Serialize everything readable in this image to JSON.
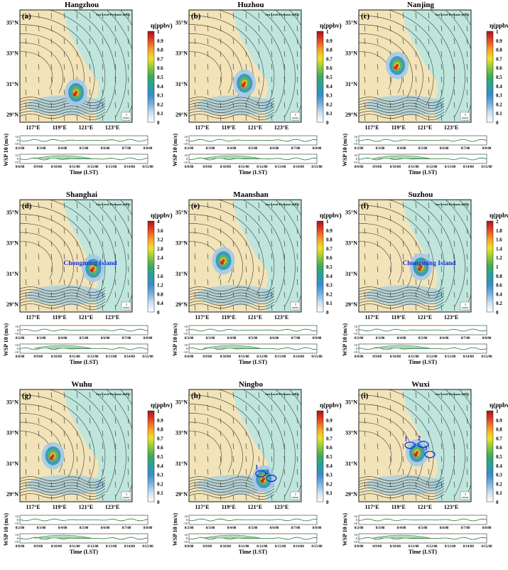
{
  "colors": {
    "land": "#f2e3b8",
    "sea": "#bfe6dd",
    "contour": "#333333",
    "wind_line": "#1f7a2e",
    "wind_fill": "#b9dfc0",
    "marker": "#e8192c",
    "annotation": "#1a2bd6"
  },
  "common": {
    "legend_title": "η(ppbv)",
    "slp_label": "Sea Level Pressure (hPa)",
    "lat_ticks": [
      "35°N",
      "33°N",
      "31°N",
      "29°N"
    ],
    "lon_ticks": [
      "117°E",
      "119°E",
      "121°E",
      "123°E"
    ],
    "ts_ylabel": "WSP 10 (m/s)",
    "ts_xlabel": "Time (LST)",
    "ts_yticks": [
      "10",
      "0",
      "-10"
    ],
    "ts1_dates": [
      "8/2/08",
      "8/3/08",
      "8/4/08",
      "8/5/08",
      "8/6/08",
      "8/7/08",
      "8/8/08"
    ],
    "ts2_dates": [
      "8/8/08",
      "8/9/08",
      "8/10/08",
      "8/11/08",
      "8/12/08",
      "8/13/08",
      "8/14/08",
      "8/15/08"
    ],
    "scale_label": "5"
  },
  "chart_data": [
    {
      "type": "heatmap",
      "panel": "(a)",
      "title": "Hangzhou",
      "colorbar_ticks": [
        "1",
        "0.9",
        "0.8",
        "0.7",
        "0.6",
        "0.5",
        "0.4",
        "0.3",
        "0.2",
        "0.1",
        "0"
      ],
      "colorbar_range": [
        0,
        1
      ],
      "source_location": {
        "lon": 120.15,
        "lat": 30.3
      },
      "annotations": []
    },
    {
      "type": "heatmap",
      "panel": "(b)",
      "title": "Huzhou",
      "colorbar_ticks": [
        "1",
        "0.9",
        "0.8",
        "0.7",
        "0.6",
        "0.5",
        "0.4",
        "0.3",
        "0.2",
        "0.1",
        "0"
      ],
      "colorbar_range": [
        0,
        1
      ],
      "source_location": {
        "lon": 120.1,
        "lat": 30.9
      },
      "annotations": []
    },
    {
      "type": "heatmap",
      "panel": "(c)",
      "title": "Nanjing",
      "colorbar_ticks": [
        "1",
        "0.9",
        "0.8",
        "0.7",
        "0.6",
        "0.5",
        "0.4",
        "0.3",
        "0.2",
        "0.1",
        "0"
      ],
      "colorbar_range": [
        0,
        1
      ],
      "source_location": {
        "lon": 118.8,
        "lat": 32.05
      },
      "annotations": []
    },
    {
      "type": "heatmap",
      "panel": "(d)",
      "title": "Shanghai",
      "colorbar_ticks": [
        "4",
        "3.6",
        "3.2",
        "2.8",
        "2.4",
        "2",
        "1.6",
        "1.2",
        "0.8",
        "0.4",
        "0"
      ],
      "colorbar_range": [
        0,
        4
      ],
      "source_location": {
        "lon": 121.45,
        "lat": 31.2
      },
      "annotations": [
        {
          "text": "Chongming Island",
          "lon": 119.3,
          "lat": 31.55
        }
      ]
    },
    {
      "type": "heatmap",
      "panel": "(e)",
      "title": "Maanshan",
      "colorbar_ticks": [
        "1",
        "0.9",
        "0.8",
        "0.7",
        "0.6",
        "0.5",
        "0.4",
        "0.3",
        "0.2",
        "0.1",
        "0"
      ],
      "colorbar_range": [
        0,
        1
      ],
      "source_location": {
        "lon": 118.5,
        "lat": 31.7
      },
      "annotations": []
    },
    {
      "type": "heatmap",
      "panel": "(f)",
      "title": "Suzhou",
      "colorbar_ticks": [
        "2",
        "1.8",
        "1.6",
        "1.4",
        "1.2",
        "1",
        "0.8",
        "0.6",
        "0.4",
        "0.2",
        "0"
      ],
      "colorbar_range": [
        0,
        2
      ],
      "source_location": {
        "lon": 120.6,
        "lat": 31.3
      },
      "annotations": [
        {
          "text": "Chongming Island",
          "lon": 119.3,
          "lat": 31.55
        }
      ]
    },
    {
      "type": "heatmap",
      "panel": "(g)",
      "title": "Wuhu",
      "colorbar_ticks": [
        "1",
        "0.9",
        "0.8",
        "0.7",
        "0.6",
        "0.5",
        "0.4",
        "0.3",
        "0.2",
        "0.1",
        "0"
      ],
      "colorbar_range": [
        0,
        1
      ],
      "source_location": {
        "lon": 118.4,
        "lat": 31.35
      },
      "annotations": []
    },
    {
      "type": "heatmap",
      "panel": "(h)",
      "title": "Ningbo",
      "colorbar_ticks": [
        "1",
        "0.9",
        "0.8",
        "0.7",
        "0.6",
        "0.5",
        "0.4",
        "0.3",
        "0.2",
        "0.1",
        "0"
      ],
      "colorbar_range": [
        0,
        1
      ],
      "source_location": {
        "lon": 121.55,
        "lat": 29.85
      },
      "annotations": [
        {
          "text": "1",
          "lon": 121.0,
          "lat": 30.6
        },
        {
          "text": "2",
          "lon": 121.8,
          "lat": 30.3
        }
      ]
    },
    {
      "type": "heatmap",
      "panel": "(i)",
      "title": "Wuxi",
      "colorbar_ticks": [
        "1",
        "0.9",
        "0.8",
        "0.7",
        "0.6",
        "0.5",
        "0.4",
        "0.3",
        "0.2",
        "0.1",
        "0"
      ],
      "colorbar_range": [
        0,
        1
      ],
      "source_location": {
        "lon": 120.3,
        "lat": 31.55
      },
      "annotations": [
        {
          "text": "1",
          "lon": 119.45,
          "lat": 32.45
        },
        {
          "text": "2",
          "lon": 120.45,
          "lat": 32.5
        },
        {
          "text": "3",
          "lon": 120.95,
          "lat": 31.85
        }
      ]
    }
  ]
}
